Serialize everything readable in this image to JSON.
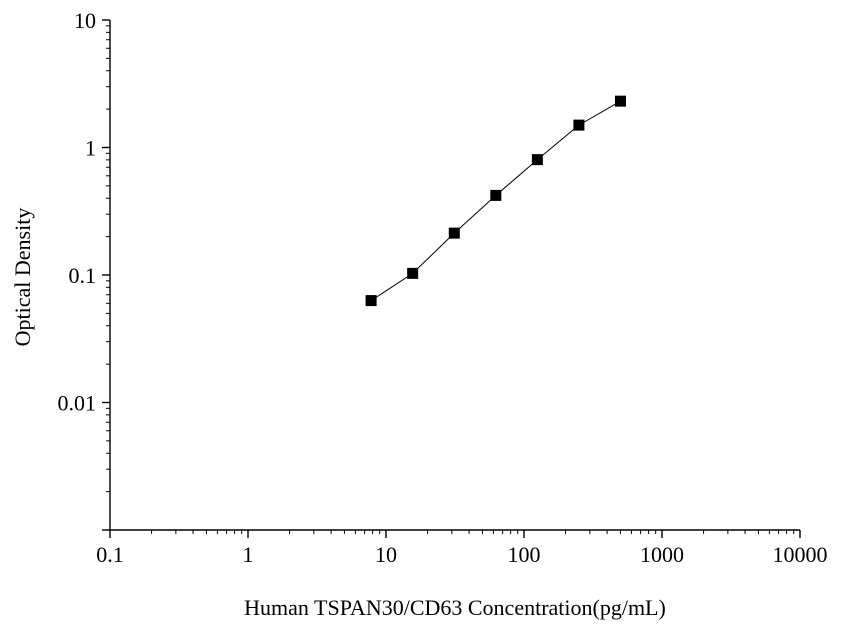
{
  "chart_data": {
    "type": "scatter",
    "title": "",
    "xlabel": "Human TSPAN30/CD63 Concentration(pg/mL)",
    "ylabel": "Optical Density",
    "x_scale": "log",
    "y_scale": "log",
    "xlim": [
      0.1,
      10000
    ],
    "ylim": [
      0.001,
      10
    ],
    "x_ticks": [
      {
        "value": 0.1,
        "label": "0.1"
      },
      {
        "value": 1,
        "label": "1"
      },
      {
        "value": 10,
        "label": "10"
      },
      {
        "value": 100,
        "label": "100"
      },
      {
        "value": 1000,
        "label": "1000"
      },
      {
        "value": 10000,
        "label": "10000"
      }
    ],
    "y_ticks": [
      {
        "value": 0.01,
        "label": "0.01"
      },
      {
        "value": 0.1,
        "label": "0.1"
      },
      {
        "value": 1,
        "label": "1"
      },
      {
        "value": 10,
        "label": "10"
      }
    ],
    "grid": false,
    "legend": "none",
    "marker": "square",
    "connected": true,
    "color": "#000000",
    "series": [
      {
        "x": [
          7.8,
          15.6,
          31.25,
          62.5,
          125,
          250,
          500
        ],
        "y": [
          0.063,
          0.103,
          0.213,
          0.421,
          0.803,
          1.498,
          2.31
        ]
      }
    ]
  }
}
